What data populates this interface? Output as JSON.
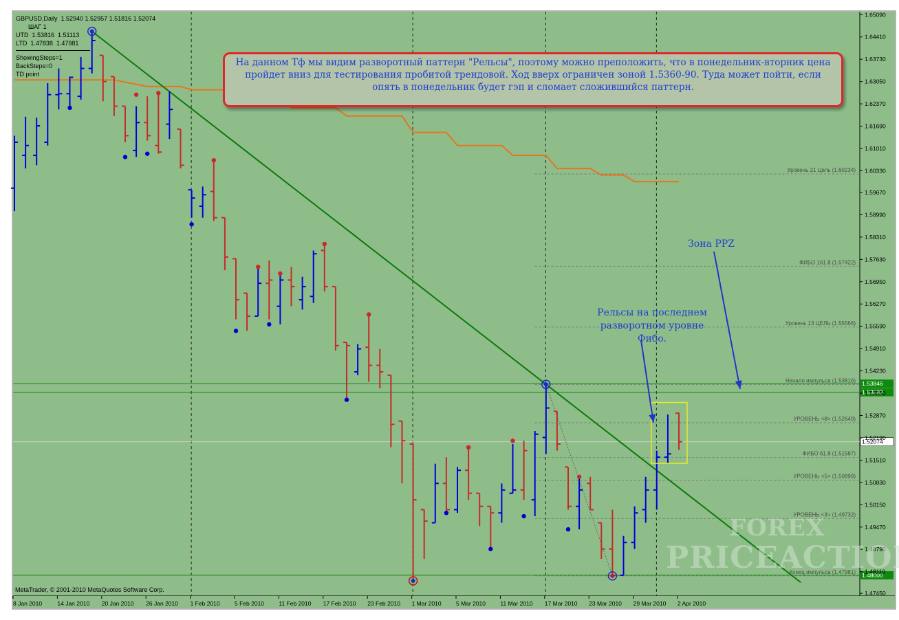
{
  "header": {
    "symbol_line": "GBPUSD,Daily  1.52940 1.52957 1.51816 1.52074",
    "step_line": "ШАГ 1",
    "utd_line": "UTD  1.53816  1.51113",
    "ltd_line": "LTD  1.47838  1.47981",
    "showing_steps": "ShowingSteps=1",
    "back_steps": "BackSteps=0",
    "td_point": "TD point"
  },
  "copyright": "MetaTrader, © 2001-2010 MetaQuotes Software Corp.",
  "note_text": "На данном Тф мы видим разворотный паттерн \"Рельсы\", поэтому можно преположить, что в понедельник-вторник цена пройдет вниз для тестирования пробитой трендовой. Ход вверх ограничен зоной 1.5360-90. Туда может пойти, если опять в понедельник будет гэп и сломает сложившийся паттерн.",
  "annotation_rails": "Рельсы на последнем разворотном уровне Фибо.",
  "annotation_ppz": "Зона PPZ",
  "watermark": {
    "line1": "FOREX",
    "line2": "PRICEACTION"
  },
  "colors": {
    "background": "#8fbd8a",
    "bull_bar": "#0000d8",
    "bear_bar": "#c62a2a",
    "trend_line": "#0b7a0b",
    "orange_line": "#e8741c",
    "level_line": "#6f6f6f",
    "horizontal_green": "#0f8a0f",
    "price_label_bg": "#0f8a0f",
    "current_price_bg": "#ffffff",
    "box": "#e8e830"
  },
  "chart_data": {
    "type": "ohlc",
    "y_ticks": [
      "1.65090",
      "1.64410",
      "1.63730",
      "1.63050",
      "1.62370",
      "1.61690",
      "1.61010",
      "1.60330",
      "1.59670",
      "1.58990",
      "1.58310",
      "1.57630",
      "1.56950",
      "1.56270",
      "1.55590",
      "1.54910",
      "1.54230",
      "1.53550",
      "1.52870",
      "1.52190",
      "1.51510",
      "1.50830",
      "1.50150",
      "1.49470",
      "1.48790",
      "1.48110",
      "1.47450"
    ],
    "x_ticks": [
      {
        "label": "8 Jan 2010",
        "index": 0
      },
      {
        "label": "14 Jan 2010",
        "index": 4
      },
      {
        "label": "20 Jan 2010",
        "index": 8
      },
      {
        "label": "26 Jan 2010",
        "index": 12
      },
      {
        "label": "1 Feb 2010",
        "index": 16
      },
      {
        "label": "5 Feb 2010",
        "index": 20
      },
      {
        "label": "11 Feb 2010",
        "index": 24
      },
      {
        "label": "17 Feb 2010",
        "index": 28
      },
      {
        "label": "23 Feb 2010",
        "index": 32
      },
      {
        "label": "1 Mar 2010",
        "index": 36
      },
      {
        "label": "5 Mar 2010",
        "index": 40
      },
      {
        "label": "11 Mar 2010",
        "index": 44
      },
      {
        "label": "17 Mar 2010",
        "index": 48
      },
      {
        "label": "23 Mar 2010",
        "index": 52
      },
      {
        "label": "29 Mar 2010",
        "index": 56
      },
      {
        "label": "2 Apr 2010",
        "index": 60
      }
    ],
    "y_range": [
      1.4737,
      1.6518
    ],
    "week_separators": [
      16,
      36,
      48,
      58
    ],
    "bars": [
      {
        "o": 1.598,
        "h": 1.614,
        "l": 1.591,
        "c": 1.612,
        "dir": "up"
      },
      {
        "o": 1.608,
        "h": 1.6198,
        "l": 1.604,
        "c": 1.611,
        "dir": "up"
      },
      {
        "o": 1.608,
        "h": 1.6195,
        "l": 1.605,
        "c": 1.617,
        "dir": "up"
      },
      {
        "o": 1.612,
        "h": 1.63,
        "l": 1.611,
        "c": 1.6265,
        "dir": "up"
      },
      {
        "o": 1.6265,
        "h": 1.6345,
        "l": 1.622,
        "c": 1.6268,
        "dir": "up"
      },
      {
        "o": 1.6268,
        "h": 1.632,
        "l": 1.6225,
        "c": 1.6318,
        "dir": "up"
      },
      {
        "o": 1.626,
        "h": 1.638,
        "l": 1.625,
        "c": 1.6345,
        "dir": "up"
      },
      {
        "o": 1.6345,
        "h": 1.6458,
        "l": 1.633,
        "c": 1.643,
        "dir": "up"
      },
      {
        "o": 1.6385,
        "h": 1.6385,
        "l": 1.6245,
        "c": 1.6305,
        "dir": "down"
      },
      {
        "o": 1.632,
        "h": 1.632,
        "l": 1.62,
        "c": 1.623,
        "dir": "down"
      },
      {
        "o": 1.623,
        "h": 1.623,
        "l": 1.612,
        "c": 1.614,
        "dir": "down"
      },
      {
        "o": 1.6095,
        "h": 1.623,
        "l": 1.6075,
        "c": 1.618,
        "dir": "up"
      },
      {
        "o": 1.618,
        "h": 1.626,
        "l": 1.6125,
        "c": 1.614,
        "dir": "down"
      },
      {
        "o": 1.611,
        "h": 1.627,
        "l": 1.6085,
        "c": 1.609,
        "dir": "down"
      },
      {
        "o": 1.6175,
        "h": 1.6275,
        "l": 1.613,
        "c": 1.622,
        "dir": "up"
      },
      {
        "o": 1.616,
        "h": 1.616,
        "l": 1.604,
        "c": 1.605,
        "dir": "down"
      },
      {
        "o": 1.5975,
        "h": 1.5975,
        "l": 1.589,
        "c": 1.595,
        "dir": "up"
      },
      {
        "o": 1.5925,
        "h": 1.5985,
        "l": 1.589,
        "c": 1.596,
        "dir": "up"
      },
      {
        "o": 1.597,
        "h": 1.6065,
        "l": 1.588,
        "c": 1.589,
        "dir": "down"
      },
      {
        "o": 1.589,
        "h": 1.589,
        "l": 1.573,
        "c": 1.577,
        "dir": "down"
      },
      {
        "o": 1.5765,
        "h": 1.5765,
        "l": 1.558,
        "c": 1.564,
        "dir": "down"
      },
      {
        "o": 1.566,
        "h": 1.566,
        "l": 1.5545,
        "c": 1.559,
        "dir": "down"
      },
      {
        "o": 1.559,
        "h": 1.574,
        "l": 1.559,
        "c": 1.569,
        "dir": "up"
      },
      {
        "o": 1.569,
        "h": 1.576,
        "l": 1.558,
        "c": 1.57,
        "dir": "down"
      },
      {
        "o": 1.562,
        "h": 1.572,
        "l": 1.5565,
        "c": 1.57,
        "dir": "up"
      },
      {
        "o": 1.57,
        "h": 1.574,
        "l": 1.562,
        "c": 1.568,
        "dir": "down"
      },
      {
        "o": 1.564,
        "h": 1.571,
        "l": 1.561,
        "c": 1.568,
        "dir": "up"
      },
      {
        "o": 1.565,
        "h": 1.579,
        "l": 1.563,
        "c": 1.578,
        "dir": "up"
      },
      {
        "o": 1.579,
        "h": 1.581,
        "l": 1.5665,
        "c": 1.568,
        "dir": "down"
      },
      {
        "o": 1.568,
        "h": 1.568,
        "l": 1.5485,
        "c": 1.55,
        "dir": "down"
      },
      {
        "o": 1.551,
        "h": 1.551,
        "l": 1.5335,
        "c": 1.55,
        "dir": "down"
      },
      {
        "o": 1.542,
        "h": 1.5505,
        "l": 1.541,
        "c": 1.549,
        "dir": "up"
      },
      {
        "o": 1.5495,
        "h": 1.5595,
        "l": 1.539,
        "c": 1.544,
        "dir": "down"
      },
      {
        "o": 1.544,
        "h": 1.549,
        "l": 1.537,
        "c": 1.542,
        "dir": "down"
      },
      {
        "o": 1.541,
        "h": 1.541,
        "l": 1.519,
        "c": 1.526,
        "dir": "down"
      },
      {
        "o": 1.527,
        "h": 1.527,
        "l": 1.508,
        "c": 1.521,
        "dir": "down"
      },
      {
        "o": 1.52,
        "h": 1.52,
        "l": 1.4783,
        "c": 1.503,
        "dir": "down"
      },
      {
        "o": 1.5,
        "h": 1.5,
        "l": 1.485,
        "c": 1.4965,
        "dir": "down"
      },
      {
        "o": 1.496,
        "h": 1.514,
        "l": 1.496,
        "c": 1.508,
        "dir": "up"
      },
      {
        "o": 1.508,
        "h": 1.516,
        "l": 1.499,
        "c": 1.5,
        "dir": "down"
      },
      {
        "o": 1.5,
        "h": 1.513,
        "l": 1.499,
        "c": 1.512,
        "dir": "up"
      },
      {
        "o": 1.512,
        "h": 1.519,
        "l": 1.503,
        "c": 1.505,
        "dir": "down"
      },
      {
        "o": 1.505,
        "h": 1.505,
        "l": 1.495,
        "c": 1.501,
        "dir": "down"
      },
      {
        "o": 1.501,
        "h": 1.501,
        "l": 1.488,
        "c": 1.499,
        "dir": "down"
      },
      {
        "o": 1.499,
        "h": 1.508,
        "l": 1.496,
        "c": 1.506,
        "dir": "up"
      },
      {
        "o": 1.505,
        "h": 1.52,
        "l": 1.505,
        "c": 1.506,
        "dir": "up"
      },
      {
        "o": 1.506,
        "h": 1.521,
        "l": 1.503,
        "c": 1.518,
        "dir": "down"
      },
      {
        "o": 1.503,
        "h": 1.524,
        "l": 1.498,
        "c": 1.523,
        "dir": "up"
      },
      {
        "o": 1.522,
        "h": 1.5382,
        "l": 1.517,
        "c": 1.531,
        "dir": "up"
      },
      {
        "o": 1.53,
        "h": 1.53,
        "l": 1.518,
        "c": 1.52,
        "dir": "down"
      },
      {
        "o": 1.513,
        "h": 1.513,
        "l": 1.5,
        "c": 1.501,
        "dir": "down"
      },
      {
        "o": 1.501,
        "h": 1.51,
        "l": 1.494,
        "c": 1.506,
        "dir": "up"
      },
      {
        "o": 1.508,
        "h": 1.51,
        "l": 1.5,
        "c": 1.5,
        "dir": "down"
      },
      {
        "o": 1.496,
        "h": 1.496,
        "l": 1.485,
        "c": 1.488,
        "dir": "down"
      },
      {
        "o": 1.488,
        "h": 1.5,
        "l": 1.4798,
        "c": 1.48,
        "dir": "down"
      },
      {
        "o": 1.48,
        "h": 1.492,
        "l": 1.48,
        "c": 1.49,
        "dir": "up"
      },
      {
        "o": 1.49,
        "h": 1.501,
        "l": 1.488,
        "c": 1.499,
        "dir": "up"
      },
      {
        "o": 1.5,
        "h": 1.51,
        "l": 1.496,
        "c": 1.506,
        "dir": "up"
      },
      {
        "o": 1.506,
        "h": 1.518,
        "l": 1.5,
        "c": 1.516,
        "dir": "up"
      },
      {
        "o": 1.516,
        "h": 1.529,
        "l": 1.514,
        "c": 1.517,
        "dir": "up"
      },
      {
        "o": 1.5294,
        "h": 1.5296,
        "l": 1.5182,
        "c": 1.5207,
        "dir": "down"
      }
    ],
    "fractal_points": [
      {
        "index": 7,
        "price": 1.6458,
        "kind": "circle"
      },
      {
        "index": 5,
        "price": 1.6225,
        "kind": "low"
      },
      {
        "index": 10,
        "price": 1.6075,
        "kind": "low"
      },
      {
        "index": 12,
        "price": 1.6085,
        "kind": "low"
      },
      {
        "index": 11,
        "price": 1.6265,
        "kind": "high"
      },
      {
        "index": 13,
        "price": 1.627,
        "kind": "high"
      },
      {
        "index": 16,
        "price": 1.587,
        "kind": "low"
      },
      {
        "index": 18,
        "price": 1.6065,
        "kind": "high"
      },
      {
        "index": 20,
        "price": 1.5545,
        "kind": "low"
      },
      {
        "index": 22,
        "price": 1.574,
        "kind": "high"
      },
      {
        "index": 23,
        "price": 1.5565,
        "kind": "low"
      },
      {
        "index": 24,
        "price": 1.572,
        "kind": "high"
      },
      {
        "index": 28,
        "price": 1.581,
        "kind": "high"
      },
      {
        "index": 30,
        "price": 1.5335,
        "kind": "low"
      },
      {
        "index": 32,
        "price": 1.5595,
        "kind": "high"
      },
      {
        "index": 36,
        "price": 1.4783,
        "kind": "circle"
      },
      {
        "index": 39,
        "price": 1.499,
        "kind": "low"
      },
      {
        "index": 41,
        "price": 1.519,
        "kind": "high"
      },
      {
        "index": 43,
        "price": 1.488,
        "kind": "low"
      },
      {
        "index": 45,
        "price": 1.521,
        "kind": "high"
      },
      {
        "index": 46,
        "price": 1.498,
        "kind": "low"
      },
      {
        "index": 48,
        "price": 1.5382,
        "kind": "circle"
      },
      {
        "index": 50,
        "price": 1.494,
        "kind": "low"
      },
      {
        "index": 51,
        "price": 1.51,
        "kind": "high"
      },
      {
        "index": 54,
        "price": 1.4798,
        "kind": "circle"
      }
    ],
    "trend_line": {
      "from": {
        "index": 7,
        "price": 1.6458
      },
      "to": {
        "index": 48,
        "price": 1.5382
      },
      "extend_to_index": 71
    },
    "orange_line": [
      {
        "index": 0,
        "price": 1.631
      },
      {
        "index": 9,
        "price": 1.631
      },
      {
        "index": 12,
        "price": 1.629
      },
      {
        "index": 15,
        "price": 1.629
      },
      {
        "index": 16,
        "price": 1.628
      },
      {
        "index": 19,
        "price": 1.628
      },
      {
        "index": 20,
        "price": 1.626
      },
      {
        "index": 24,
        "price": 1.626
      },
      {
        "index": 25,
        "price": 1.6225
      },
      {
        "index": 29,
        "price": 1.6225
      },
      {
        "index": 30,
        "price": 1.62
      },
      {
        "index": 35,
        "price": 1.62
      },
      {
        "index": 36,
        "price": 1.615
      },
      {
        "index": 39,
        "price": 1.615
      },
      {
        "index": 40,
        "price": 1.611
      },
      {
        "index": 44,
        "price": 1.611
      },
      {
        "index": 45,
        "price": 1.608
      },
      {
        "index": 48,
        "price": 1.608
      },
      {
        "index": 49,
        "price": 1.604
      },
      {
        "index": 52,
        "price": 1.604
      },
      {
        "index": 53,
        "price": 1.602
      },
      {
        "index": 55,
        "price": 1.602
      },
      {
        "index": 56,
        "price": 1.6
      },
      {
        "index": 60,
        "price": 1.6
      }
    ],
    "dotted_line": {
      "from": {
        "index": 48,
        "price": 1.5382
      },
      "to": {
        "index": 54,
        "price": 1.4798
      }
    },
    "levels": [
      {
        "name": "Уровень 21 Цель",
        "value": "(1.60234)",
        "price": 1.60234
      },
      {
        "name": "ФИБО 161.8",
        "value": "(1.57422)",
        "price": 1.57422
      },
      {
        "name": "Уровень 13 ЦЕЛЬ",
        "value": "(1.55566)",
        "price": 1.55566
      },
      {
        "name": "Начало импульса",
        "value": "(1.53816)",
        "price": 1.53816
      },
      {
        "name": "УРОВЕНЬ <8>",
        "value": "(1.52649)",
        "price": 1.52649
      },
      {
        "name": "ФИБО 61.8",
        "value": "(1.51587)",
        "price": 1.51587
      },
      {
        "name": "УРОВЕНЬ <5>",
        "value": "(1.50899)",
        "price": 1.50899
      },
      {
        "name": "УРОВЕНЬ <3>",
        "value": "(1.49732)",
        "price": 1.49732
      },
      {
        "name": "Конец импульса",
        "value": "(1.47981)",
        "price": 1.47981
      }
    ],
    "horizontal_lines": [
      {
        "price": 1.5384,
        "label": "1.53846"
      },
      {
        "price": 1.5358,
        "label": "1.53583"
      },
      {
        "price": 1.48,
        "label": "1.48000"
      }
    ],
    "current_price": {
      "price": 1.5207,
      "label": "1.52074"
    },
    "box": {
      "from_index": 58,
      "to_index": 60,
      "high": 1.531,
      "low": 1.5158
    }
  }
}
